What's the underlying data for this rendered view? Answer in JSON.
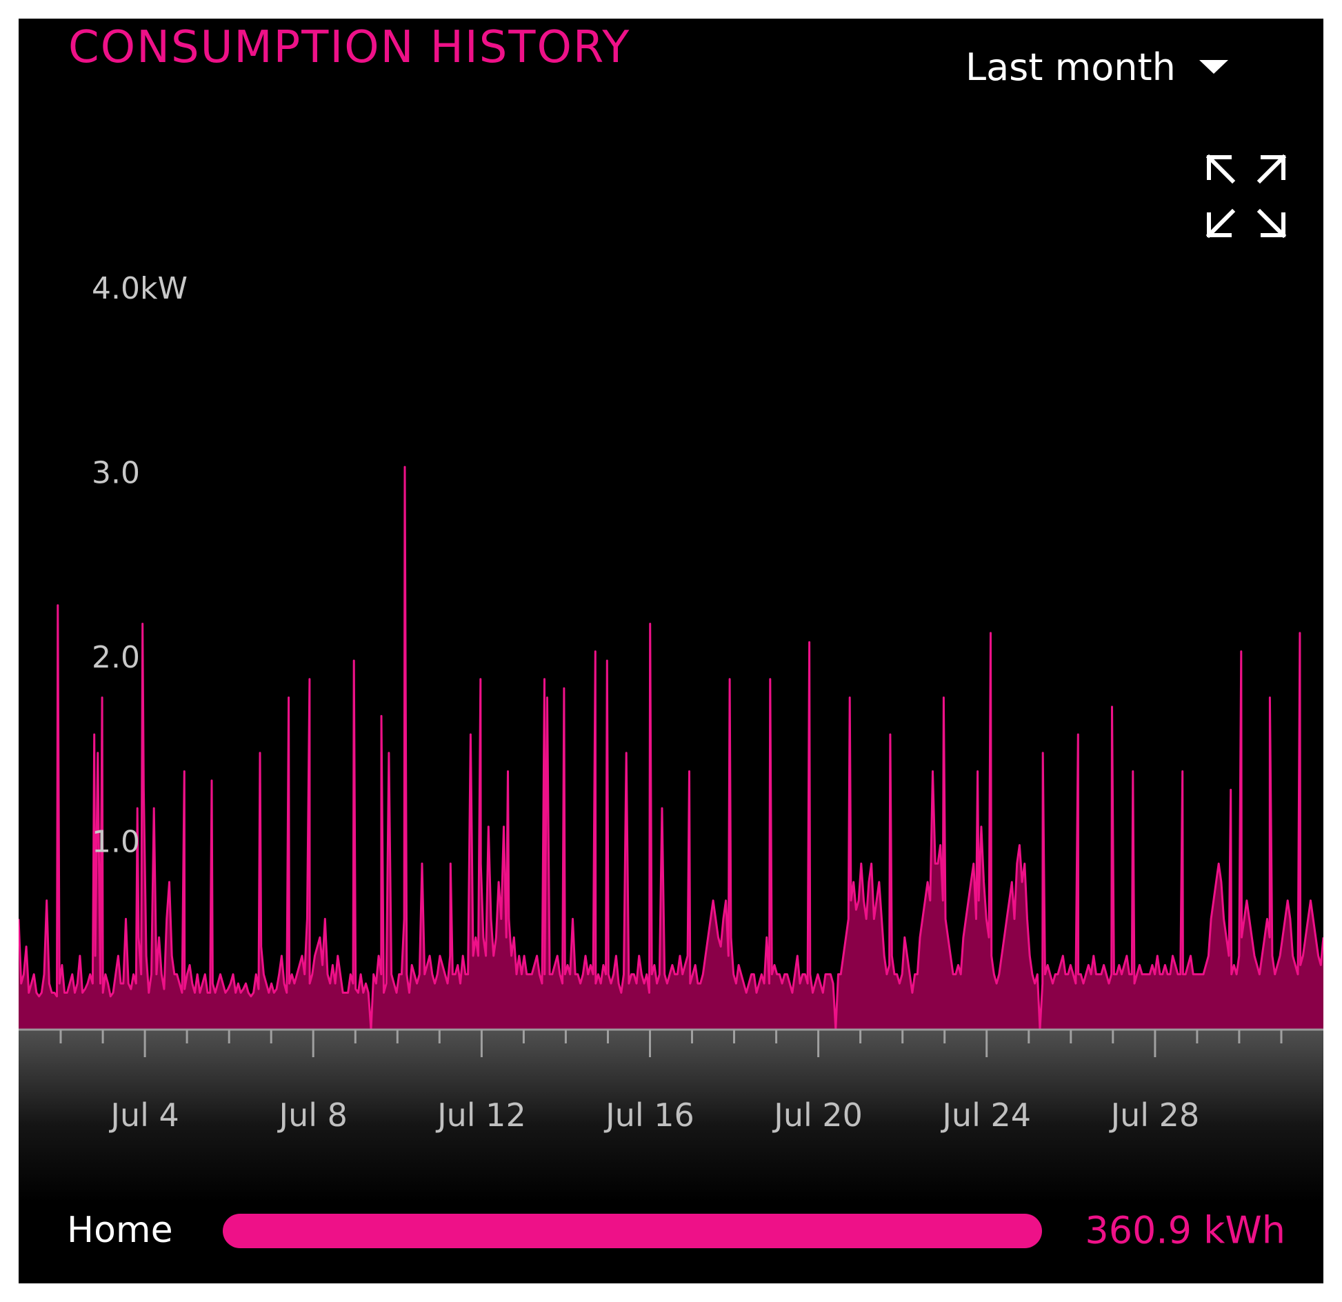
{
  "header": {
    "title": "CONSUMPTION HISTORY"
  },
  "period_select": {
    "selected": "Last month",
    "icon": "caret-down-icon"
  },
  "expand": {
    "icon": "expand-icon"
  },
  "legend": {
    "label": "Home",
    "value": "360.9 kWh",
    "fill_fraction": 1.0,
    "color": "#ee1188"
  },
  "colors": {
    "accent": "#ee1188",
    "area_fill": "#8a0048",
    "background": "#000000"
  },
  "chart_data": {
    "type": "area",
    "title": "CONSUMPTION HISTORY",
    "ylim": [
      0,
      4.0
    ],
    "y_ticks": [
      {
        "value": 1.0,
        "label": "1.0"
      },
      {
        "value": 2.0,
        "label": "2.0"
      },
      {
        "value": 3.0,
        "label": "3.0"
      },
      {
        "value": 4.0,
        "label": "4.0kW"
      }
    ],
    "x_range": [
      "Jul 1",
      "Jul 31 24:00"
    ],
    "x_ticks": [
      {
        "date": "Jul 4",
        "label": "Jul 4"
      },
      {
        "date": "Jul 8",
        "label": "Jul 8"
      },
      {
        "date": "Jul 12",
        "label": "Jul 12"
      },
      {
        "date": "Jul 16",
        "label": "Jul 16"
      },
      {
        "date": "Jul 20",
        "label": "Jul 20"
      },
      {
        "date": "Jul 24",
        "label": "Jul 24"
      },
      {
        "date": "Jul 28",
        "label": "Jul 28"
      }
    ],
    "grid": false,
    "series": [
      {
        "name": "Home",
        "unit": "kW",
        "values": [
          0.6,
          0.25,
          0.3,
          0.45,
          0.2,
          0.25,
          0.3,
          0.2,
          0.18,
          0.2,
          0.3,
          0.7,
          0.25,
          0.2,
          0.2,
          0.18,
          0.25,
          0.35,
          0.2,
          0.2,
          0.25,
          0.3,
          0.2,
          0.25,
          0.4,
          0.2,
          0.22,
          0.25,
          0.3,
          0.25,
          0.4,
          1.5,
          0.25,
          0.2,
          0.3,
          0.25,
          0.18,
          0.2,
          0.3,
          0.4,
          0.25,
          0.25,
          0.6,
          0.25,
          0.22,
          0.3,
          0.25,
          0.5,
          0.3,
          1.3,
          0.4,
          0.2,
          0.3,
          1.2,
          0.3,
          0.5,
          0.3,
          0.22,
          0.6,
          0.8,
          0.4,
          0.3,
          0.3,
          0.25,
          0.2,
          0.22,
          0.3,
          0.35,
          0.25,
          0.2,
          0.3,
          0.2,
          0.25,
          0.3,
          0.2,
          0.2,
          0.25,
          0.2,
          0.25,
          0.3,
          0.25,
          0.2,
          0.22,
          0.25,
          0.3,
          0.2,
          0.25,
          0.2,
          0.22,
          0.25,
          0.2,
          0.18,
          0.2,
          0.3,
          0.22,
          0.45,
          0.3,
          0.25,
          0.2,
          0.25,
          0.2,
          0.22,
          0.3,
          0.4,
          0.25,
          0.2,
          0.25,
          0.3,
          0.25,
          0.3,
          0.35,
          0.4,
          0.3,
          0.6,
          0.25,
          0.3,
          0.4,
          0.45,
          0.5,
          0.35,
          0.6,
          0.3,
          0.25,
          0.35,
          0.25,
          0.4,
          0.3,
          0.2,
          0.2,
          0.2,
          0.3,
          0.25,
          0.22,
          0.2,
          0.3,
          0.2,
          0.25,
          0.2,
          0.0,
          0.3,
          0.25,
          0.4,
          0.3,
          0.2,
          0.25,
          1.5,
          0.3,
          0.25,
          0.2,
          0.3,
          0.3,
          0.6,
          0.3,
          0.2,
          0.35,
          0.3,
          0.25,
          0.3,
          0.9,
          0.3,
          0.35,
          0.4,
          0.3,
          0.25,
          0.3,
          0.4,
          0.35,
          0.3,
          0.25,
          0.4,
          0.3,
          0.3,
          0.35,
          0.25,
          0.4,
          0.3,
          0.3,
          1.6,
          0.4,
          0.5,
          0.4,
          0.9,
          0.5,
          0.4,
          1.1,
          0.6,
          0.4,
          0.5,
          0.8,
          0.6,
          1.1,
          0.5,
          0.6,
          0.4,
          0.5,
          0.3,
          0.4,
          0.3,
          0.4,
          0.3,
          0.3,
          0.3,
          0.35,
          0.4,
          0.3,
          0.25,
          0.3,
          1.8,
          0.3,
          0.3,
          0.35,
          0.4,
          0.3,
          0.25,
          0.3,
          0.35,
          0.3,
          0.6,
          0.3,
          0.3,
          0.25,
          0.3,
          0.4,
          0.3,
          0.35,
          0.3,
          0.25,
          0.3,
          0.25,
          0.35,
          0.3,
          0.3,
          0.25,
          0.3,
          0.4,
          0.25,
          0.2,
          0.3,
          1.5,
          0.25,
          0.3,
          0.3,
          0.25,
          0.4,
          0.3,
          0.25,
          0.3,
          0.2,
          0.3,
          0.35,
          0.25,
          0.3,
          1.2,
          0.3,
          0.25,
          0.3,
          0.35,
          0.3,
          0.3,
          0.4,
          0.3,
          0.35,
          0.4,
          0.25,
          0.3,
          0.35,
          0.25,
          0.25,
          0.3,
          0.4,
          0.5,
          0.6,
          0.7,
          0.6,
          0.5,
          0.45,
          0.6,
          0.7,
          0.4,
          0.5,
          0.3,
          0.25,
          0.35,
          0.3,
          0.25,
          0.2,
          0.25,
          0.3,
          0.3,
          0.2,
          0.25,
          0.3,
          0.25,
          0.5,
          0.25,
          0.3,
          0.35,
          0.3,
          0.3,
          0.25,
          0.3,
          0.3,
          0.25,
          0.2,
          0.3,
          0.4,
          0.25,
          0.3,
          0.3,
          0.25,
          0.3,
          0.2,
          0.25,
          0.3,
          0.25,
          0.2,
          0.3,
          0.3,
          0.3,
          0.25,
          0.0,
          0.3,
          0.3,
          0.4,
          0.5,
          0.6,
          0.7,
          0.8,
          0.65,
          0.7,
          0.9,
          0.7,
          0.6,
          0.8,
          0.9,
          0.6,
          0.7,
          0.8,
          0.6,
          0.4,
          0.3,
          0.35,
          0.4,
          0.3,
          0.3,
          0.25,
          0.3,
          0.5,
          0.4,
          0.3,
          0.2,
          0.3,
          0.3,
          0.5,
          0.6,
          0.7,
          0.8,
          0.7,
          1.4,
          0.9,
          0.9,
          1.0,
          0.7,
          0.6,
          0.5,
          0.4,
          0.3,
          0.3,
          0.35,
          0.3,
          0.5,
          0.6,
          0.7,
          0.8,
          0.9,
          0.6,
          0.7,
          1.1,
          0.8,
          0.6,
          0.5,
          0.4,
          0.3,
          0.25,
          0.3,
          0.4,
          0.5,
          0.6,
          0.7,
          0.8,
          0.6,
          0.9,
          1.0,
          0.8,
          0.9,
          0.6,
          0.4,
          0.3,
          0.25,
          0.3,
          0.0,
          0.25,
          0.3,
          0.35,
          0.3,
          0.25,
          0.3,
          0.3,
          0.35,
          0.4,
          0.3,
          0.3,
          0.35,
          0.3,
          0.25,
          0.3,
          0.3,
          0.25,
          0.3,
          0.35,
          0.3,
          0.4,
          0.3,
          0.3,
          0.3,
          0.35,
          0.3,
          0.25,
          0.3,
          0.3,
          0.3,
          0.35,
          0.3,
          0.35,
          0.4,
          0.3,
          0.3,
          0.25,
          0.3,
          0.35,
          0.3,
          0.3,
          0.3,
          0.3,
          0.35,
          0.3,
          0.4,
          0.3,
          0.3,
          0.35,
          0.3,
          0.3,
          0.4,
          0.35,
          0.3,
          0.3,
          0.3,
          0.3,
          0.35,
          0.4,
          0.3,
          0.3,
          0.3,
          0.3,
          0.3,
          0.35,
          0.4,
          0.6,
          0.7,
          0.8,
          0.9,
          0.8,
          0.6,
          0.5,
          0.4,
          0.3,
          0.35,
          0.3,
          0.4,
          0.5,
          0.6,
          0.7,
          0.6,
          0.5,
          0.4,
          0.35,
          0.3,
          0.4,
          0.5,
          0.6,
          0.5,
          0.4,
          0.3,
          0.35,
          0.4,
          0.5,
          0.6,
          0.7,
          0.6,
          0.4,
          0.35,
          0.3,
          0.35,
          0.4,
          0.5,
          0.6,
          0.7,
          0.6,
          0.5,
          0.4,
          0.35,
          0.5
        ]
      }
    ],
    "spikes": [
      {
        "at": 0.03,
        "value": 2.3
      },
      {
        "at": 0.058,
        "value": 1.6
      },
      {
        "at": 0.064,
        "value": 1.8
      },
      {
        "at": 0.091,
        "value": 1.2
      },
      {
        "at": 0.095,
        "value": 2.2
      },
      {
        "at": 0.127,
        "value": 1.4
      },
      {
        "at": 0.148,
        "value": 1.35
      },
      {
        "at": 0.185,
        "value": 1.5
      },
      {
        "at": 0.207,
        "value": 1.8
      },
      {
        "at": 0.223,
        "value": 1.9
      },
      {
        "at": 0.257,
        "value": 2.0
      },
      {
        "at": 0.278,
        "value": 1.7
      },
      {
        "at": 0.296,
        "value": 3.05
      },
      {
        "at": 0.331,
        "value": 0.9
      },
      {
        "at": 0.354,
        "value": 1.9
      },
      {
        "at": 0.375,
        "value": 1.4
      },
      {
        "at": 0.403,
        "value": 1.9
      },
      {
        "at": 0.418,
        "value": 1.85
      },
      {
        "at": 0.442,
        "value": 2.05
      },
      {
        "at": 0.451,
        "value": 2.0
      },
      {
        "at": 0.484,
        "value": 2.2
      },
      {
        "at": 0.514,
        "value": 1.4
      },
      {
        "at": 0.545,
        "value": 1.9
      },
      {
        "at": 0.576,
        "value": 1.9
      },
      {
        "at": 0.606,
        "value": 2.1
      },
      {
        "at": 0.637,
        "value": 1.8
      },
      {
        "at": 0.668,
        "value": 1.6
      },
      {
        "at": 0.709,
        "value": 1.8
      },
      {
        "at": 0.735,
        "value": 1.4
      },
      {
        "at": 0.745,
        "value": 2.15
      },
      {
        "at": 0.785,
        "value": 1.5
      },
      {
        "at": 0.812,
        "value": 1.6
      },
      {
        "at": 0.838,
        "value": 1.75
      },
      {
        "at": 0.854,
        "value": 1.4
      },
      {
        "at": 0.892,
        "value": 1.4
      },
      {
        "at": 0.929,
        "value": 1.3
      },
      {
        "at": 0.937,
        "value": 2.05
      },
      {
        "at": 0.959,
        "value": 1.8
      },
      {
        "at": 0.982,
        "value": 2.15
      }
    ]
  }
}
